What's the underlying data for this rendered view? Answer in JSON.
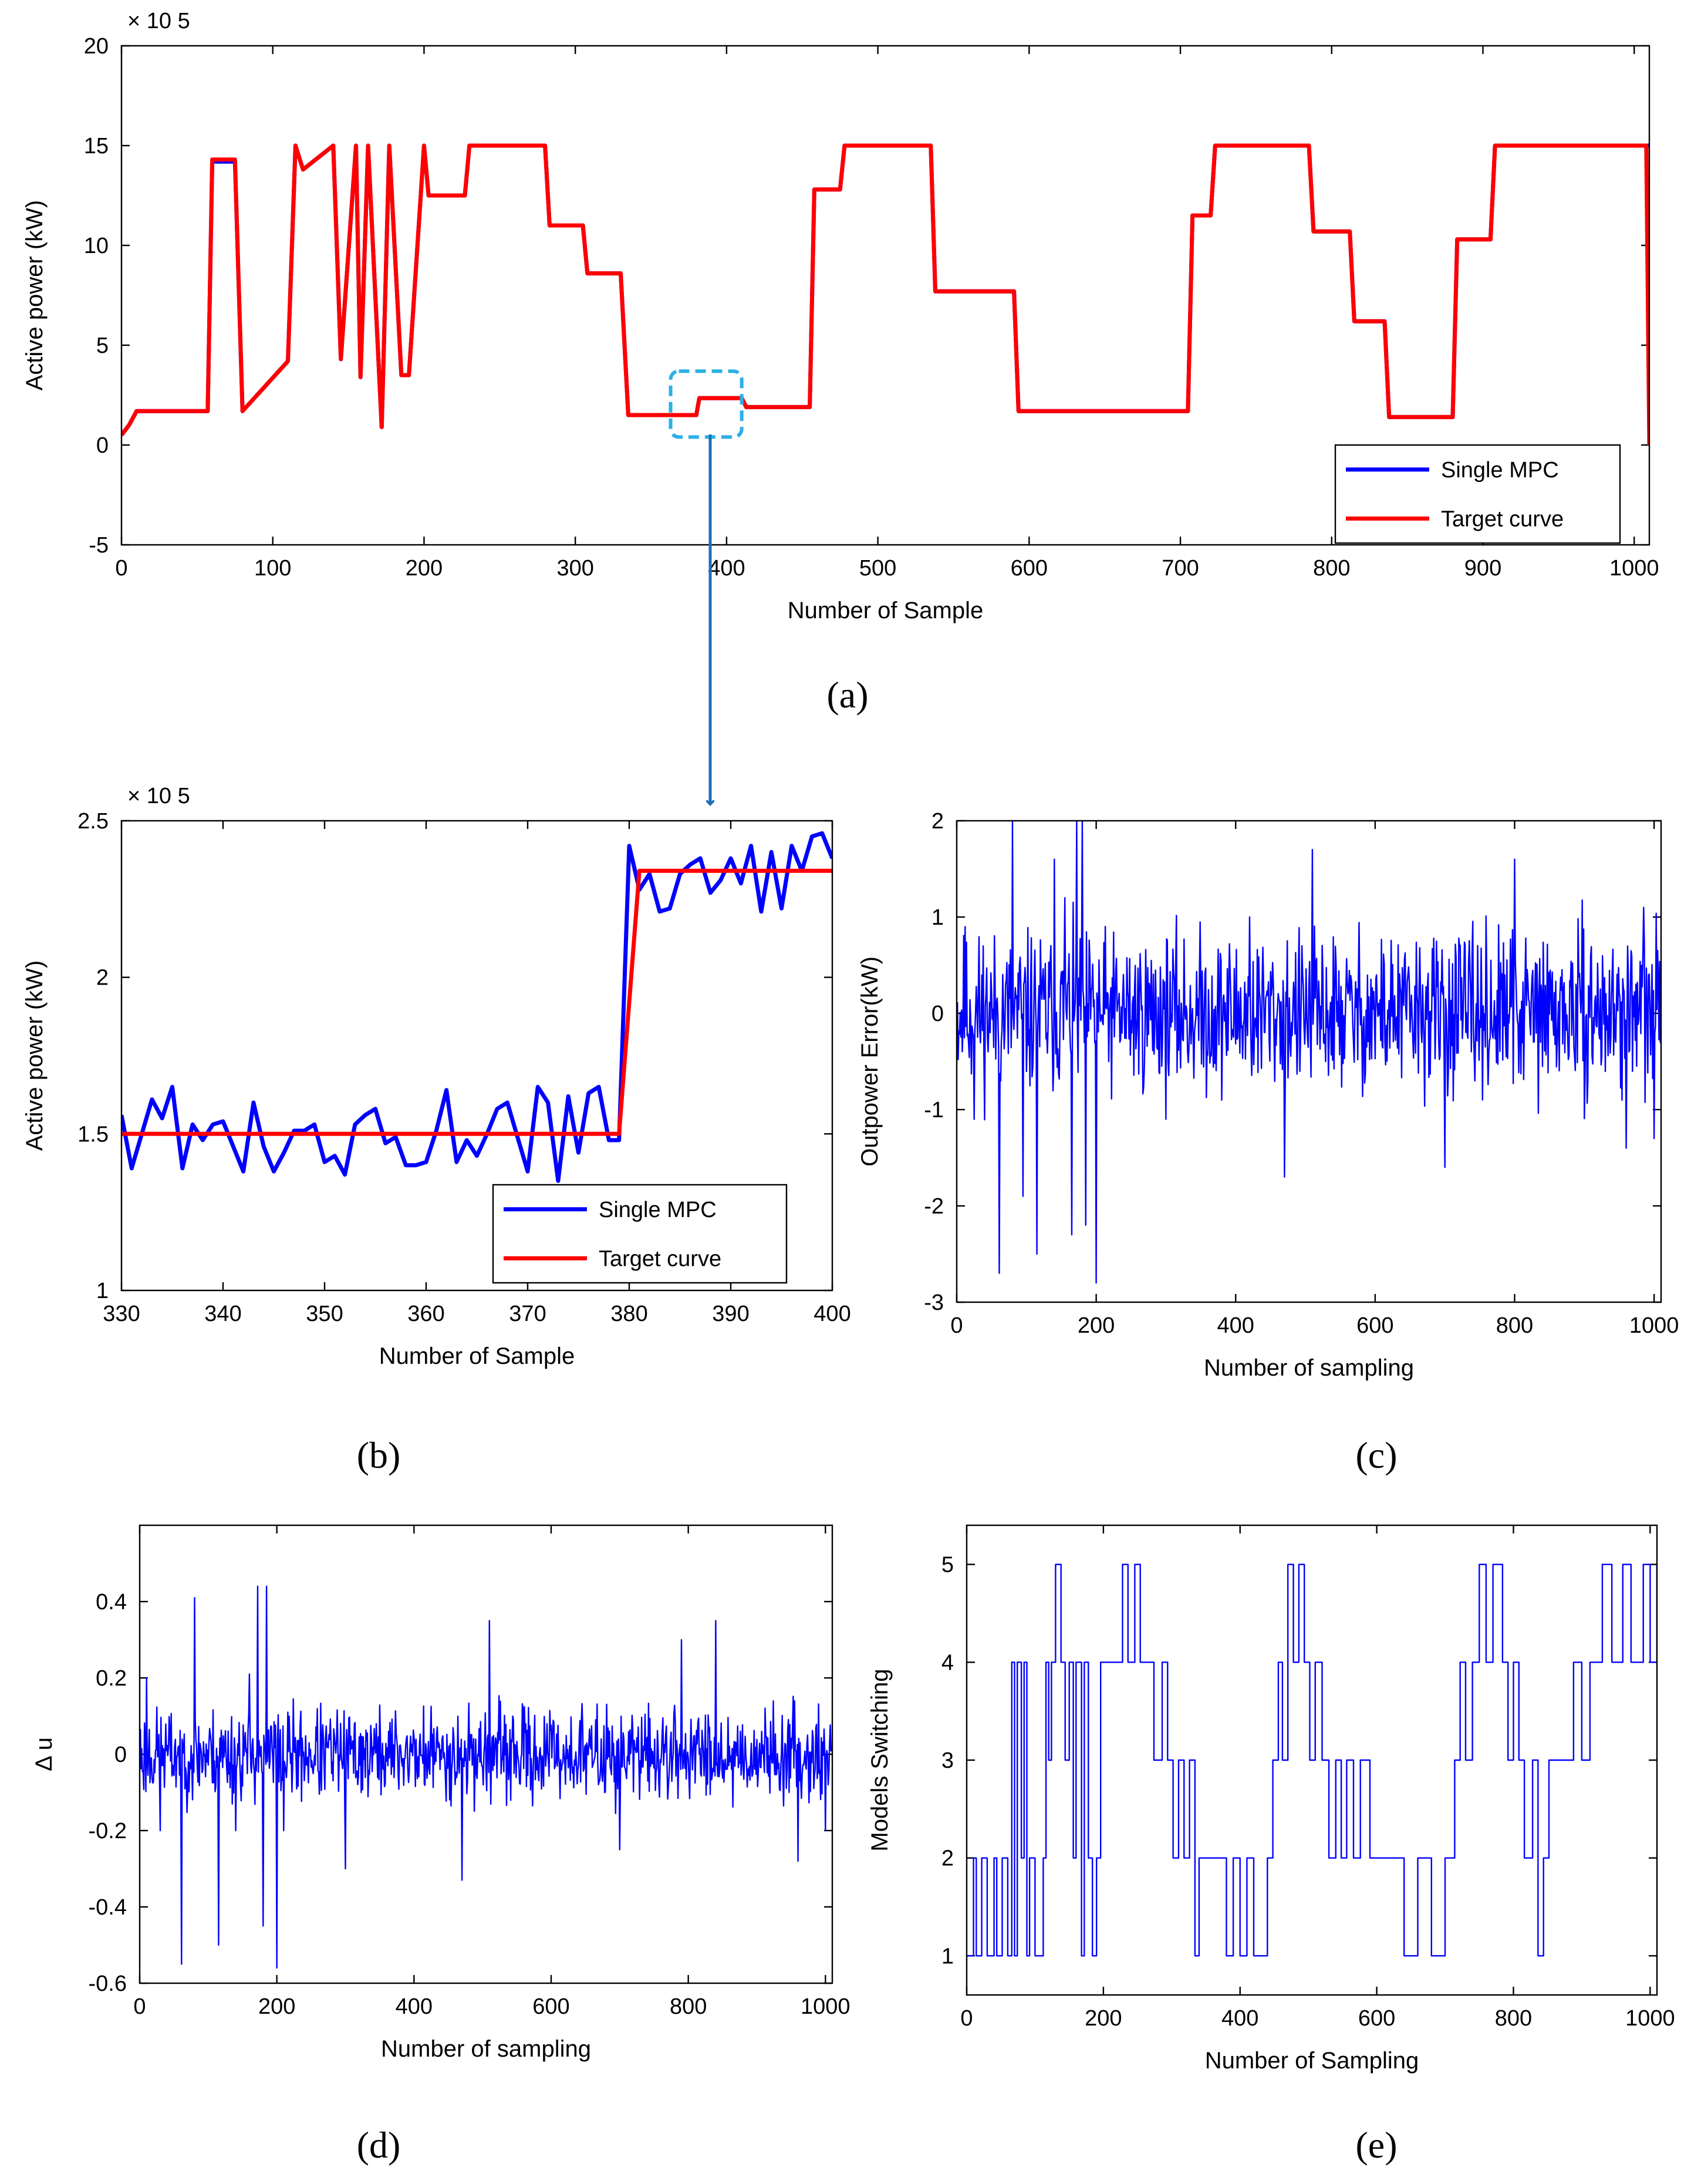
{
  "chart_data": [
    {
      "id": "a",
      "panel_label": "(a)",
      "type": "line",
      "xlabel": "Number of Sample",
      "ylabel": "Active power (kW)",
      "y_exponent": "× 10 5",
      "xlim": [
        0,
        1010
      ],
      "ylim": [
        -5,
        20
      ],
      "xticks": [
        0,
        100,
        200,
        300,
        400,
        500,
        600,
        700,
        800,
        900,
        1000
      ],
      "yticks": [
        -5,
        0,
        5,
        10,
        15,
        20
      ],
      "legend": {
        "placement": "bottom-right"
      },
      "zoom_box": {
        "x": [
          363,
          410
        ],
        "y": [
          0.4,
          3.7
        ],
        "color": "#2ab0e6"
      },
      "series": [
        {
          "name": "Single MPC",
          "color": "#0000ff",
          "x": [
            0,
            5,
            10,
            57,
            60,
            75,
            80,
            110,
            115,
            120,
            140,
            145,
            155,
            158,
            163,
            172,
            177,
            185,
            190,
            200,
            203,
            227,
            230,
            280,
            283,
            305,
            308,
            330,
            335,
            363,
            365,
            380,
            382,
            410,
            413,
            455,
            458,
            475,
            478,
            535,
            538,
            590,
            593,
            705,
            708,
            720,
            723,
            785,
            788,
            812,
            815,
            835,
            838,
            880,
            883,
            905,
            908,
            1010
          ],
          "y": [
            0.5,
            1.0,
            1.7,
            1.7,
            14.2,
            14.2,
            1.7,
            4.2,
            15.0,
            13.8,
            15.0,
            4.3,
            15.0,
            3.4,
            15.0,
            0.9,
            15.0,
            3.5,
            3.5,
            15.0,
            12.5,
            12.5,
            15.0,
            15.0,
            11.0,
            11.0,
            8.6,
            8.6,
            1.5,
            1.5,
            1.5,
            1.5,
            2.35,
            2.35,
            1.9,
            1.9,
            12.8,
            12.8,
            15.0,
            15.0,
            7.7,
            7.7,
            1.7,
            1.7,
            11.5,
            11.5,
            15.0,
            15.0,
            10.7,
            10.7,
            6.2,
            6.2,
            1.4,
            1.4,
            10.3,
            10.3,
            15.0,
            15.0
          ]
        },
        {
          "name": "Target curve",
          "color": "#ff0000",
          "x": [
            0,
            5,
            10,
            57,
            60,
            75,
            80,
            110,
            115,
            120,
            140,
            145,
            155,
            158,
            163,
            172,
            177,
            185,
            190,
            200,
            203,
            227,
            230,
            280,
            283,
            305,
            308,
            330,
            335,
            380,
            382,
            410,
            413,
            455,
            458,
            475,
            478,
            535,
            538,
            590,
            593,
            705,
            708,
            720,
            723,
            785,
            788,
            812,
            815,
            835,
            838,
            880,
            883,
            905,
            908,
            1008,
            1010
          ],
          "y": [
            0.5,
            1.0,
            1.7,
            1.7,
            14.3,
            14.3,
            1.7,
            4.2,
            15.0,
            13.8,
            15.0,
            4.3,
            15.0,
            3.4,
            15.0,
            0.9,
            15.0,
            3.5,
            3.5,
            15.0,
            12.5,
            12.5,
            15.0,
            15.0,
            11.0,
            11.0,
            8.6,
            8.6,
            1.5,
            1.5,
            2.35,
            2.35,
            1.9,
            1.9,
            12.8,
            12.8,
            15.0,
            15.0,
            7.7,
            7.7,
            1.7,
            1.7,
            11.5,
            11.5,
            15.0,
            15.0,
            10.7,
            10.7,
            6.2,
            6.2,
            1.4,
            1.4,
            10.3,
            10.3,
            15.0,
            15.0,
            0.0
          ]
        }
      ]
    },
    {
      "id": "b",
      "panel_label": "(b)",
      "type": "line",
      "xlabel": "Number of Sample",
      "ylabel": "Active power (kW)",
      "y_exponent": "× 10 5",
      "xlim": [
        330,
        400
      ],
      "ylim": [
        1,
        2.5
      ],
      "xticks": [
        330,
        340,
        350,
        360,
        370,
        380,
        390,
        400
      ],
      "yticks": [
        1,
        1.5,
        2,
        2.5
      ],
      "legend": {
        "placement": "bottom-right"
      },
      "series": [
        {
          "name": "Single MPC",
          "color": "#0000ff",
          "x": [
            330,
            331,
            332,
            333,
            334,
            335,
            336,
            337,
            338,
            339,
            340,
            341,
            342,
            343,
            344,
            345,
            346,
            347,
            348,
            349,
            350,
            351,
            352,
            353,
            354,
            355,
            356,
            357,
            358,
            359,
            360,
            361,
            362,
            363,
            364,
            365,
            366,
            367,
            368,
            369,
            370,
            371,
            372,
            373,
            374,
            375,
            376,
            377,
            378,
            379,
            380,
            381,
            382,
            383,
            384,
            385,
            386,
            387,
            388,
            389,
            390,
            391,
            392,
            393,
            394,
            395,
            396,
            397,
            398,
            399,
            400
          ],
          "y": [
            1.56,
            1.39,
            1.5,
            1.61,
            1.55,
            1.65,
            1.39,
            1.53,
            1.48,
            1.53,
            1.54,
            1.46,
            1.38,
            1.6,
            1.46,
            1.38,
            1.44,
            1.51,
            1.51,
            1.53,
            1.41,
            1.43,
            1.37,
            1.53,
            1.56,
            1.58,
            1.47,
            1.49,
            1.4,
            1.4,
            1.41,
            1.51,
            1.64,
            1.41,
            1.48,
            1.43,
            1.5,
            1.58,
            1.6,
            1.49,
            1.38,
            1.65,
            1.6,
            1.35,
            1.62,
            1.44,
            1.63,
            1.65,
            1.48,
            1.48,
            2.42,
            2.28,
            2.33,
            2.21,
            2.22,
            2.33,
            2.36,
            2.38,
            2.27,
            2.31,
            2.38,
            2.3,
            2.42,
            2.21,
            2.4,
            2.22,
            2.42,
            2.34,
            2.45,
            2.46,
            2.38
          ]
        },
        {
          "name": "Target curve",
          "color": "#ff0000",
          "x": [
            330,
            379,
            381,
            400
          ],
          "y": [
            1.5,
            1.5,
            2.34,
            2.34
          ]
        }
      ]
    },
    {
      "id": "c",
      "panel_label": "(c)",
      "type": "line",
      "xlabel": "Number of sampling",
      "ylabel": "Outpower Error(kW)",
      "xlim": [
        0,
        1010
      ],
      "ylim": [
        -3,
        2
      ],
      "xticks": [
        0,
        200,
        400,
        600,
        800,
        1000
      ],
      "yticks": [
        -3,
        -2,
        -1,
        0,
        1,
        2
      ],
      "series": [
        {
          "name": "",
          "color": "#0000ff",
          "generator": "noise",
          "n": 1010,
          "seed": 11,
          "amp": 0.55,
          "mean": 0.0,
          "clip": [
            -2.6,
            1.9
          ],
          "spikes": [
            [
              12,
              0.9
            ],
            [
              25,
              -1.1
            ],
            [
              38,
              0.7
            ],
            [
              61,
              -2.7
            ],
            [
              80,
              2.0
            ],
            [
              95,
              -1.9
            ],
            [
              115,
              -2.5
            ],
            [
              140,
              1.6
            ],
            [
              155,
              1.2
            ],
            [
              165,
              -2.3
            ],
            [
              172,
              2.0
            ],
            [
              180,
              2.0
            ],
            [
              185,
              -2.2
            ],
            [
              200,
              -2.8
            ],
            [
              300,
              -1.1
            ],
            [
              420,
              1.0
            ],
            [
              470,
              -1.7
            ],
            [
              510,
              1.7
            ],
            [
              700,
              -1.6
            ],
            [
              800,
              1.6
            ],
            [
              960,
              -1.4
            ],
            [
              985,
              1.1
            ],
            [
              1000,
              -1.3
            ]
          ]
        }
      ]
    },
    {
      "id": "d",
      "panel_label": "(d)",
      "type": "line",
      "xlabel": "Number of sampling",
      "ylabel": "Δ u",
      "xlim": [
        0,
        1010
      ],
      "ylim": [
        -0.6,
        0.6
      ],
      "xticks": [
        0,
        200,
        400,
        600,
        800,
        1000
      ],
      "yticks": [
        -0.6,
        -0.4,
        -0.2,
        0,
        0.2,
        0.4
      ],
      "series": [
        {
          "name": "",
          "color": "#0000ff",
          "generator": "noise",
          "n": 1010,
          "seed": 23,
          "amp": 0.08,
          "mean": 0.0,
          "clip": [
            -0.3,
            0.3
          ],
          "spikes": [
            [
              10,
              0.2
            ],
            [
              30,
              -0.2
            ],
            [
              61,
              -0.55
            ],
            [
              80,
              0.41
            ],
            [
              115,
              -0.5
            ],
            [
              140,
              -0.2
            ],
            [
              160,
              0.21
            ],
            [
              172,
              0.44
            ],
            [
              180,
              -0.45
            ],
            [
              185,
              0.44
            ],
            [
              200,
              -0.56
            ],
            [
              210,
              -0.2
            ],
            [
              300,
              -0.3
            ],
            [
              470,
              -0.33
            ],
            [
              510,
              0.35
            ],
            [
              700,
              -0.25
            ],
            [
              790,
              0.3
            ],
            [
              840,
              0.35
            ],
            [
              960,
              -0.28
            ],
            [
              1000,
              -0.2
            ]
          ]
        }
      ]
    },
    {
      "id": "e",
      "panel_label": "(e)",
      "type": "line",
      "xlabel": "Number of Sampling",
      "ylabel": "Models Switching",
      "xlim": [
        0,
        1010
      ],
      "ylim": [
        0.6,
        5.4
      ],
      "xticks": [
        0,
        200,
        400,
        600,
        800,
        1000
      ],
      "yticks": [
        1,
        2,
        3,
        4,
        5
      ],
      "series": [
        {
          "name": "",
          "color": "#0000ff",
          "step": true,
          "x": [
            0,
            10,
            14,
            22,
            30,
            40,
            44,
            52,
            60,
            66,
            70,
            74,
            80,
            84,
            88,
            92,
            100,
            112,
            116,
            120,
            124,
            130,
            138,
            144,
            150,
            156,
            160,
            168,
            172,
            178,
            184,
            190,
            196,
            202,
            210,
            228,
            236,
            246,
            254,
            262,
            274,
            286,
            294,
            302,
            310,
            318,
            326,
            334,
            340,
            360,
            380,
            390,
            400,
            410,
            420,
            430,
            440,
            448,
            456,
            462,
            470,
            478,
            486,
            494,
            502,
            510,
            520,
            530,
            540,
            548,
            556,
            566,
            576,
            590,
            600,
            640,
            660,
            680,
            700,
            714,
            722,
            730,
            740,
            750,
            760,
            770,
            784,
            792,
            800,
            808,
            816,
            828,
            836,
            844,
            852,
            870,
            888,
            900,
            912,
            930,
            944,
            960,
            972,
            990,
            1000,
            1010
          ],
          "y": [
            1,
            2,
            1,
            2,
            1,
            2,
            1,
            2,
            1,
            4,
            1,
            4,
            2,
            4,
            1,
            2,
            1,
            2,
            4,
            3,
            4,
            5,
            4,
            3,
            4,
            2,
            4,
            1,
            4,
            2,
            1,
            2,
            4,
            4,
            4,
            5,
            4,
            5,
            4,
            4,
            3,
            4,
            3,
            2,
            3,
            2,
            3,
            1,
            2,
            2,
            1,
            2,
            1,
            2,
            1,
            1,
            2,
            3,
            4,
            3,
            5,
            4,
            5,
            4,
            3,
            4,
            3,
            2,
            3,
            2,
            3,
            2,
            3,
            2,
            2,
            1,
            2,
            1,
            2,
            3,
            4,
            3,
            4,
            5,
            4,
            5,
            4,
            3,
            4,
            3,
            2,
            3,
            1,
            2,
            3,
            3,
            4,
            3,
            4,
            5,
            4,
            5,
            4,
            5,
            4,
            5
          ]
        }
      ]
    }
  ]
}
